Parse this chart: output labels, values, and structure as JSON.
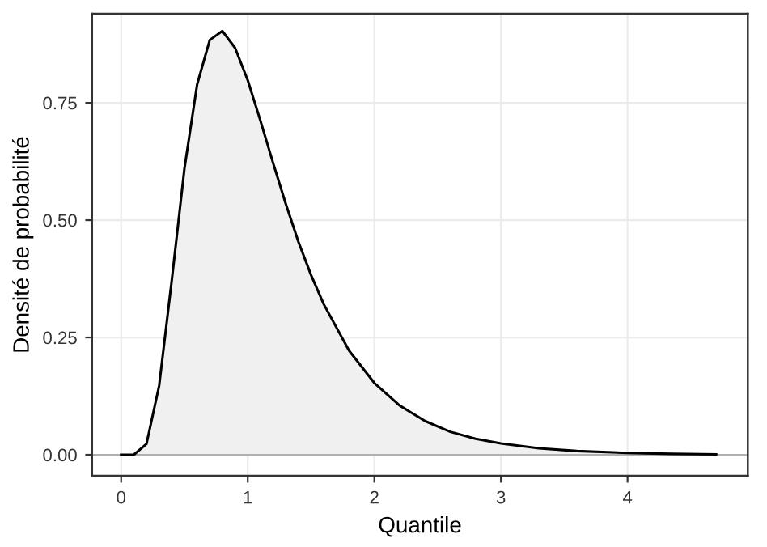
{
  "chart_data": {
    "type": "area",
    "xlabel": "Quantile",
    "ylabel": "Densité de probabilité",
    "x": [
      0,
      0.1,
      0.2,
      0.3,
      0.4,
      0.5,
      0.6,
      0.7,
      0.8,
      0.9,
      1.0,
      1.1,
      1.2,
      1.3,
      1.4,
      1.5,
      1.6,
      1.8,
      2.0,
      2.2,
      2.4,
      2.6,
      2.8,
      3.0,
      3.3,
      3.6,
      4.0,
      4.35,
      4.7
    ],
    "series": [
      {
        "color": "#000000",
        "values": [
          0,
          0.0,
          0.023,
          0.147,
          0.372,
          0.61,
          0.789,
          0.884,
          0.903,
          0.867,
          0.798,
          0.712,
          0.622,
          0.535,
          0.454,
          0.383,
          0.321,
          0.222,
          0.153,
          0.105,
          0.072,
          0.049,
          0.034,
          0.024,
          0.014,
          0.008,
          0.004,
          0.002,
          0.001
        ]
      }
    ],
    "xlim": [
      -0.23,
      4.95
    ],
    "ylim": [
      -0.045,
      0.94
    ],
    "xticks": [
      0,
      1,
      2,
      3,
      4
    ],
    "yticks": [
      {
        "value": 0,
        "label": "0.00"
      },
      {
        "value": 0.25,
        "label": "0.25"
      },
      {
        "value": 0.5,
        "label": "0.50"
      },
      {
        "value": 0.75,
        "label": "0.75"
      }
    ],
    "grid": true
  }
}
